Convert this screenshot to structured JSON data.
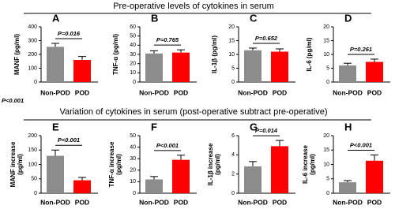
{
  "sections": [
    "Pre-operative levels of cytokines in serum",
    "Variation of cytokines in serum  (post-operative subtract pre-operative)"
  ],
  "note": "P<0.001",
  "chart_data": [
    {
      "type": "bar",
      "label": "A",
      "ylabel": [
        "MANF (pg/ml)"
      ],
      "categories": [
        "Non-POD",
        "POD"
      ],
      "values": [
        255,
        160
      ],
      "errors": [
        25,
        25
      ],
      "colors": [
        "#8c8c8c",
        "#ff0000"
      ],
      "ylim": [
        0,
        400
      ],
      "yticks": [
        0,
        100,
        200,
        300,
        400
      ],
      "annotation": "P=0.016"
    },
    {
      "type": "bar",
      "label": "B",
      "ylabel": [
        "TNF-α (pg/ml)"
      ],
      "categories": [
        "Non-POD",
        "POD"
      ],
      "values": [
        31,
        32
      ],
      "errors": [
        3,
        3
      ],
      "colors": [
        "#8c8c8c",
        "#ff0000"
      ],
      "ylim": [
        0,
        60
      ],
      "yticks": [
        0,
        10,
        20,
        30,
        40,
        50,
        60
      ],
      "annotation": "P=0.765"
    },
    {
      "type": "bar",
      "label": "C",
      "ylabel": [
        "IL-1β (pg/ml)"
      ],
      "categories": [
        "Non-POD",
        "POD"
      ],
      "values": [
        11.5,
        11
      ],
      "errors": [
        0.8,
        1
      ],
      "colors": [
        "#8c8c8c",
        "#ff0000"
      ],
      "ylim": [
        0,
        20
      ],
      "yticks": [
        0,
        5,
        10,
        15,
        20
      ],
      "annotation": "P=0.652"
    },
    {
      "type": "bar",
      "label": "D",
      "ylabel": [
        "IL-6 (pg/ml)"
      ],
      "categories": [
        "Non-POD",
        "POD"
      ],
      "values": [
        6,
        7.3
      ],
      "errors": [
        0.8,
        1
      ],
      "colors": [
        "#8c8c8c",
        "#ff0000"
      ],
      "ylim": [
        0,
        20
      ],
      "yticks": [
        0,
        5,
        10,
        15,
        20
      ],
      "annotation": "P=0.261"
    },
    {
      "type": "bar",
      "label": "E",
      "ylabel": [
        "MANF increase",
        "(pg/ml)"
      ],
      "categories": [
        "Non-POD",
        "POD"
      ],
      "values": [
        130,
        45
      ],
      "errors": [
        20,
        10
      ],
      "colors": [
        "#8c8c8c",
        "#ff0000"
      ],
      "ylim": [
        0,
        200
      ],
      "yticks": [
        0,
        50,
        100,
        150,
        200
      ],
      "annotation": "P<0.001"
    },
    {
      "type": "bar",
      "label": "F",
      "ylabel": [
        "TNF-α increase",
        "(pg/ml)"
      ],
      "categories": [
        "Non-POD",
        "POD"
      ],
      "values": [
        12,
        29
      ],
      "errors": [
        2.5,
        4
      ],
      "colors": [
        "#8c8c8c",
        "#ff0000"
      ],
      "ylim": [
        0,
        50
      ],
      "yticks": [
        0,
        10,
        20,
        30,
        40,
        50
      ],
      "annotation": "P<0.001"
    },
    {
      "type": "bar",
      "label": "G",
      "ylabel": [
        "IL-1β increase",
        "(pg/ml)"
      ],
      "categories": [
        "Non-POD",
        "POD"
      ],
      "values": [
        2.8,
        4.9
      ],
      "errors": [
        0.5,
        0.6
      ],
      "colors": [
        "#8c8c8c",
        "#ff0000"
      ],
      "ylim": [
        0,
        6
      ],
      "yticks": [
        0,
        2,
        4,
        6
      ],
      "annotation": "P=0.014"
    },
    {
      "type": "bar",
      "label": "H",
      "ylabel": [
        "IL-6 increase",
        "(pg/ml)"
      ],
      "categories": [
        "Non-POD",
        "POD"
      ],
      "values": [
        3.8,
        11.3
      ],
      "errors": [
        0.6,
        2
      ],
      "colors": [
        "#8c8c8c",
        "#ff0000"
      ],
      "ylim": [
        0,
        20
      ],
      "yticks": [
        0,
        5,
        10,
        15,
        20
      ],
      "annotation": "P<0.001"
    }
  ]
}
